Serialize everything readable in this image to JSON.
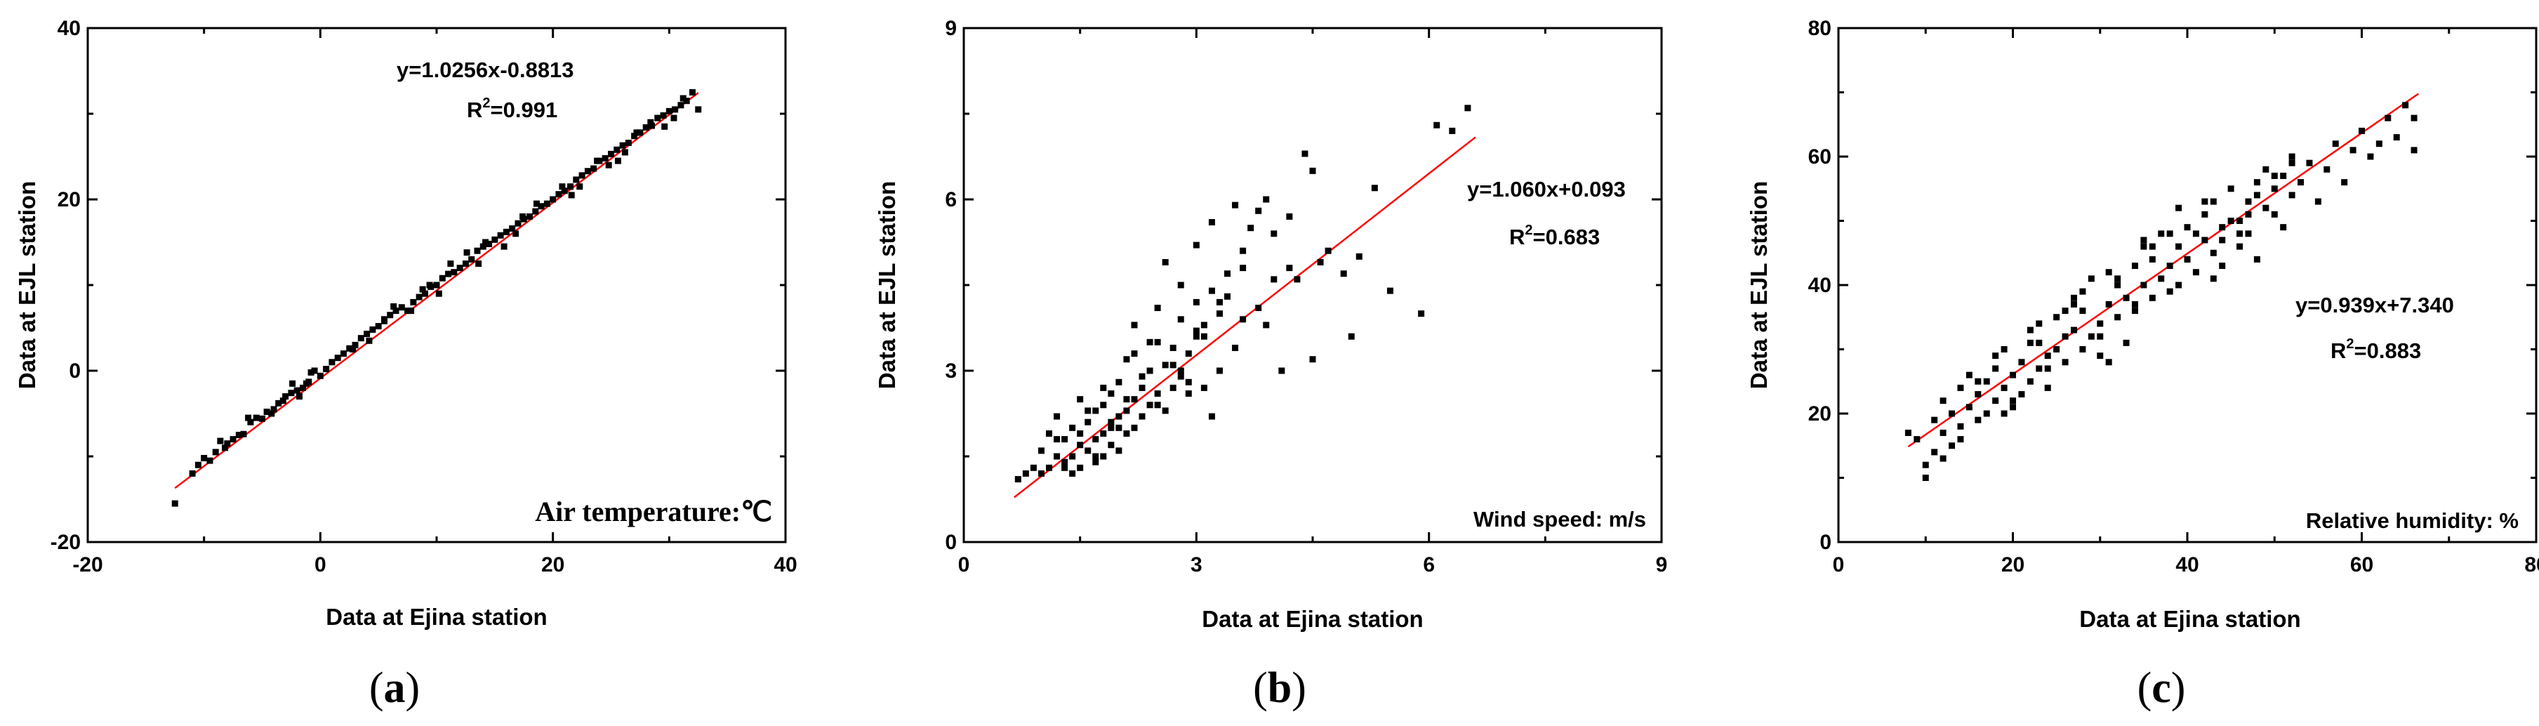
{
  "chart_data": [
    {
      "type": "scatter",
      "panel": "(a)",
      "panel_label": {
        "open": "(",
        "letter": "a",
        "close": ")"
      },
      "xlabel": "Data at Ejina station",
      "ylabel": "Data at EJL station",
      "xlim": [
        -20,
        40
      ],
      "ylim": [
        -20,
        40
      ],
      "xticks": [
        -20,
        0,
        20,
        40
      ],
      "yticks": [
        -20,
        0,
        20,
        40
      ],
      "fit": {
        "slope": 1.0256,
        "intercept": -0.8813,
        "x_range": [
          -12.5,
          32.5
        ]
      },
      "equation": "y=1.0256x-0.8813",
      "r2_prefix": "R",
      "r2_sup": "2",
      "r2_value": "=0.991",
      "variable": "Air temperature:℃",
      "series": [
        {
          "x": [
            -12.5,
            -11,
            -10.5,
            -10,
            -9.5,
            -9,
            -8.6,
            -8.2,
            -8,
            -7.5,
            -7,
            -6.6,
            -6,
            -5.5,
            -5,
            -4.6,
            -4,
            -3.6,
            -3.2,
            -3,
            -2.5,
            -2,
            -1.5,
            -1.2,
            -1,
            -0.5,
            0,
            0.5,
            1,
            1.5,
            2,
            2.5,
            3,
            3.5,
            4,
            4.5,
            5,
            5.5,
            6,
            6.5,
            7,
            7.5,
            8,
            8.5,
            9,
            9.5,
            10,
            10.5,
            11,
            11.5,
            12,
            12.5,
            13,
            13.5,
            14,
            14.5,
            15,
            15.5,
            16,
            16.5,
            17,
            17.5,
            18,
            18.5,
            19,
            19.5,
            20,
            20.5,
            21,
            21.5,
            22,
            22.5,
            23,
            23.5,
            24,
            24.5,
            25,
            25.5,
            26,
            26.5,
            27,
            27.5,
            28,
            28.5,
            29,
            29.5,
            30,
            30.5,
            31,
            31.5,
            32,
            32.5,
            -1.8,
            -2.4,
            5.5,
            6.3,
            10.2,
            12.6,
            15.8,
            18.6,
            22.3,
            24.8,
            27.2,
            29.6,
            31.2,
            2.8,
            7.8,
            13.6,
            16.8,
            20.8,
            26.2,
            28.4,
            -0.8,
            4.2,
            9.4,
            11.2,
            17.4,
            21.6,
            23.8,
            25.6,
            30.4,
            -6.2,
            -4.2,
            8.8,
            14.2
          ],
          "y": [
            -15.5,
            -12,
            -11,
            -10.2,
            -10.5,
            -9.5,
            -8.2,
            -9,
            -8.5,
            -8,
            -7.5,
            -7.4,
            -6,
            -5.5,
            -5.6,
            -4.8,
            -4.5,
            -3.8,
            -3.5,
            -3,
            -2.6,
            -2.3,
            -2,
            -1.5,
            -1.3,
            0,
            -0.6,
            0.2,
            1,
            1.5,
            2,
            2.6,
            3,
            3.8,
            4.3,
            4.8,
            5.2,
            5.8,
            6.5,
            7,
            7.4,
            7,
            8,
            8.6,
            9,
            9.8,
            10,
            10.8,
            11.3,
            11.5,
            12,
            12.5,
            13,
            14,
            14.5,
            14.8,
            15.3,
            15.8,
            16.2,
            16.6,
            17.2,
            17.7,
            18,
            18.6,
            19.2,
            19.5,
            20,
            20.6,
            21,
            21.5,
            22.3,
            22.8,
            23.3,
            23.6,
            24.5,
            24.8,
            25.3,
            25.8,
            26.3,
            26.6,
            27.4,
            27.8,
            28.4,
            28.6,
            29.5,
            29.8,
            30.3,
            30.5,
            31,
            31.5,
            32.5,
            30.5,
            -3,
            -1.5,
            6,
            7.5,
            9,
            13.8,
            14.5,
            19.5,
            21.5,
            24,
            27.8,
            28.5,
            31.8,
            2.5,
            7,
            12.5,
            16,
            21.5,
            25.5,
            29,
            -0.2,
            3.5,
            10,
            12.5,
            18,
            20.5,
            24.5,
            24.5,
            29.5,
            -5.5,
            -5,
            9.5,
            15
          ]
        }
      ]
    },
    {
      "type": "scatter",
      "panel": "(b)",
      "panel_label": {
        "open": "(",
        "letter": "b",
        "close": ")"
      },
      "xlabel": "Data at Ejina station",
      "ylabel": "Data at EJL station",
      "xlim": [
        0,
        9
      ],
      "ylim": [
        0,
        9
      ],
      "xticks": [
        0,
        3,
        6,
        9
      ],
      "yticks": [
        0,
        3,
        6,
        9
      ],
      "fit": {
        "slope": 1.06,
        "intercept": 0.093,
        "x_range": [
          0.65,
          6.6
        ]
      },
      "equation": "y=1.060x+0.093",
      "r2_prefix": "R",
      "r2_sup": "2",
      "r2_value": "=0.683",
      "variable": "Wind speed: m/s",
      "series": [
        {
          "x": [
            0.7,
            0.8,
            0.9,
            1.0,
            1.0,
            1.1,
            1.1,
            1.2,
            1.2,
            1.3,
            1.3,
            1.4,
            1.4,
            1.5,
            1.5,
            1.5,
            1.6,
            1.6,
            1.7,
            1.7,
            1.7,
            1.8,
            1.8,
            1.8,
            1.9,
            1.9,
            1.9,
            2.0,
            2.0,
            2.0,
            2.1,
            2.1,
            2.1,
            2.2,
            2.2,
            2.2,
            2.3,
            2.3,
            2.4,
            2.4,
            2.5,
            2.5,
            2.5,
            2.6,
            2.6,
            2.7,
            2.7,
            2.8,
            2.8,
            2.8,
            2.9,
            2.9,
            3.0,
            3.0,
            3.0,
            3.1,
            3.1,
            3.2,
            3.2,
            3.3,
            3.3,
            3.4,
            3.5,
            3.5,
            3.6,
            3.7,
            3.8,
            3.8,
            3.9,
            4.0,
            4.1,
            4.2,
            4.3,
            4.4,
            4.5,
            4.6,
            4.7,
            4.9,
            5.0,
            5.1,
            5.3,
            5.5,
            5.9,
            6.1,
            6.3,
            6.5,
            1.2,
            1.4,
            1.6,
            1.8,
            2.0,
            2.2,
            2.4,
            2.6,
            2.9,
            3.1,
            3.4,
            3.6,
            3.9,
            4.2,
            1.3,
            1.5,
            1.7,
            1.9,
            2.1,
            2.3,
            2.7,
            3.2,
            3.6,
            4.0,
            4.5,
            2.5,
            2.8,
            3.0,
            3.3
          ],
          "y": [
            1.1,
            1.2,
            1.3,
            1.2,
            1.6,
            1.3,
            1.9,
            1.5,
            2.2,
            1.4,
            1.8,
            1.2,
            2.0,
            1.3,
            1.7,
            2.5,
            1.6,
            2.1,
            1.8,
            2.3,
            1.4,
            1.9,
            2.4,
            1.5,
            2.0,
            2.6,
            1.7,
            2.2,
            2.8,
            1.6,
            2.3,
            1.9,
            3.2,
            2.5,
            2.0,
            3.8,
            2.7,
            2.2,
            3.0,
            2.4,
            3.5,
            2.6,
            4.1,
            3.1,
            2.3,
            3.4,
            2.7,
            3.9,
            3.0,
            4.5,
            3.3,
            2.6,
            4.2,
            3.6,
            5.2,
            3.8,
            2.7,
            4.4,
            5.6,
            4.0,
            3.0,
            4.7,
            5.9,
            3.4,
            4.8,
            5.5,
            5.8,
            4.1,
            3.8,
            5.4,
            3.0,
            5.7,
            4.6,
            6.8,
            3.2,
            4.9,
            5.1,
            4.7,
            3.6,
            5.0,
            6.2,
            4.4,
            4.0,
            7.3,
            7.2,
            7.6,
            1.8,
            1.5,
            2.3,
            2.7,
            2.0,
            3.3,
            3.5,
            4.9,
            2.8,
            3.6,
            4.3,
            5.1,
            6.0,
            4.8,
            1.3,
            1.9,
            1.5,
            2.1,
            2.5,
            2.9,
            3.1,
            2.2,
            3.9,
            4.6,
            6.5,
            2.4,
            2.9,
            3.7,
            4.2
          ]
        }
      ]
    },
    {
      "type": "scatter",
      "panel": "(c)",
      "panel_label": {
        "open": "(",
        "letter": "c",
        "close": ")"
      },
      "xlabel": "Data at Ejina station",
      "ylabel": "Data at EJL station",
      "xlim": [
        0,
        80
      ],
      "ylim": [
        0,
        80
      ],
      "xticks": [
        0,
        20,
        40,
        60,
        80
      ],
      "yticks": [
        0,
        20,
        40,
        60,
        80
      ],
      "fit": {
        "slope": 0.939,
        "intercept": 7.34,
        "x_range": [
          8,
          66.5
        ]
      },
      "equation": "y=0.939x+7.340",
      "r2_prefix": "R",
      "r2_sup": "2",
      "r2_value": "=0.883",
      "variable": "Relative humidity: %",
      "series": [
        {
          "x": [
            8,
            9,
            10,
            10,
            11,
            11,
            12,
            12,
            13,
            13,
            14,
            14,
            15,
            15,
            16,
            16,
            17,
            17,
            18,
            18,
            19,
            19,
            20,
            20,
            21,
            21,
            22,
            22,
            23,
            23,
            24,
            24,
            25,
            25,
            26,
            26,
            27,
            27,
            28,
            28,
            29,
            29,
            30,
            30,
            31,
            31,
            32,
            32,
            33,
            33,
            34,
            34,
            35,
            35,
            36,
            36,
            37,
            37,
            38,
            38,
            39,
            39,
            40,
            40,
            41,
            41,
            42,
            42,
            43,
            43,
            44,
            44,
            45,
            45,
            46,
            46,
            47,
            47,
            48,
            48,
            49,
            49,
            50,
            50,
            51,
            51,
            52,
            52,
            53,
            54,
            55,
            56,
            57,
            58,
            59,
            60,
            61,
            62,
            63,
            64,
            65,
            66,
            66,
            12,
            14,
            16,
            18,
            20,
            22,
            24,
            26,
            28,
            30,
            32,
            34,
            36,
            38,
            40,
            42,
            44,
            46,
            48,
            50,
            52,
            19,
            23,
            27,
            31,
            35,
            39,
            43,
            47
          ],
          "y": [
            17,
            16,
            12,
            10,
            19,
            14,
            22,
            17,
            20,
            15,
            24,
            18,
            21,
            26,
            23,
            19,
            25,
            20,
            22,
            27,
            24,
            30,
            26,
            21,
            28,
            23,
            25,
            31,
            27,
            34,
            29,
            24,
            30,
            35,
            28,
            32,
            33,
            38,
            30,
            36,
            32,
            41,
            34,
            29,
            37,
            42,
            35,
            40,
            38,
            31,
            43,
            36,
            40,
            47,
            38,
            44,
            41,
            48,
            43,
            39,
            46,
            52,
            44,
            49,
            42,
            48,
            47,
            53,
            45,
            41,
            49,
            43,
            50,
            55,
            48,
            46,
            53,
            51,
            56,
            44,
            52,
            58,
            51,
            55,
            57,
            49,
            54,
            60,
            56,
            59,
            53,
            58,
            62,
            56,
            61,
            64,
            60,
            62,
            66,
            63,
            68,
            66,
            61,
            13,
            16,
            25,
            29,
            22,
            33,
            27,
            36,
            39,
            32,
            41,
            37,
            46,
            48,
            44,
            51,
            47,
            50,
            54,
            57,
            59,
            20,
            31,
            37,
            28,
            46,
            40,
            53,
            48
          ]
        }
      ]
    }
  ]
}
